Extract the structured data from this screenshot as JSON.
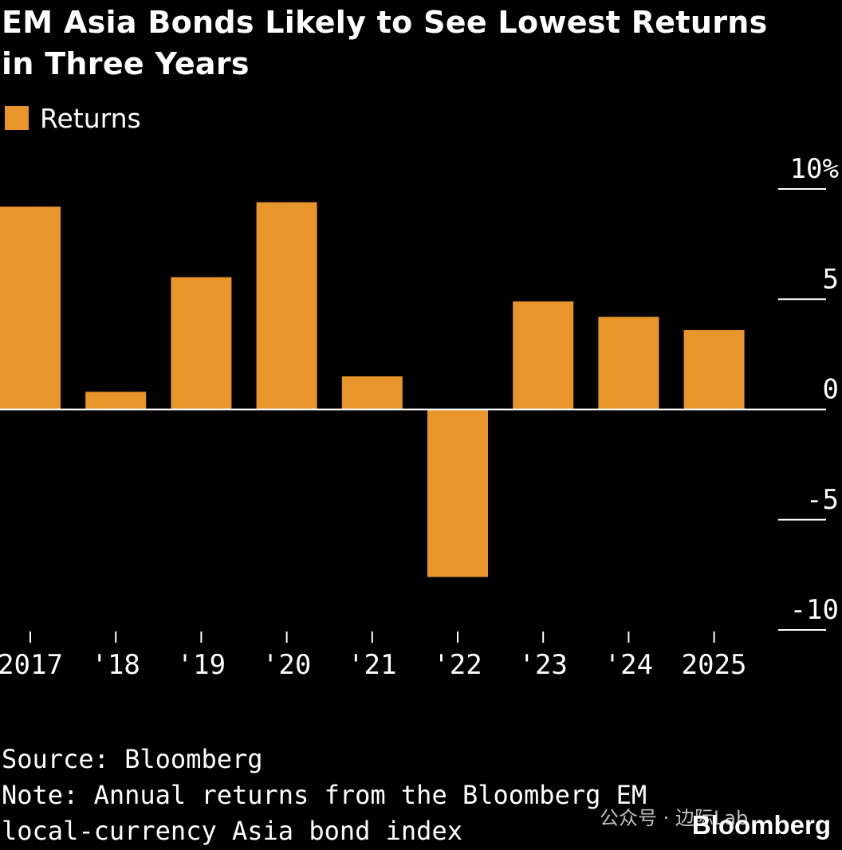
{
  "chart_data": {
    "type": "bar",
    "title": "EM Asia Bonds Likely to See Lowest Returns in Three Years",
    "title_lines": [
      "EM Asia Bonds Likely to See Lowest Returns",
      "in Three Years"
    ],
    "legend": [
      "Returns"
    ],
    "categories": [
      "2017",
      "'18",
      "'19",
      "'20",
      "'21",
      "'22",
      "'23",
      "'24",
      "2025"
    ],
    "series": [
      {
        "name": "Returns",
        "values": [
          9.2,
          0.8,
          6.0,
          9.4,
          1.5,
          -7.6,
          4.9,
          4.2,
          3.6
        ]
      }
    ],
    "ylim": [
      -10,
      10
    ],
    "yticks": [
      10,
      5,
      0,
      -5,
      -10
    ],
    "ytick_labels": [
      "10%",
      "5",
      "0",
      "-5",
      "-10"
    ],
    "y_axis_position": "right",
    "bar_color": "#E8952C",
    "background": "#000000"
  },
  "footer": {
    "source": "Source: Bloomberg",
    "note_line1": "Note: Annual returns from the Bloomberg EM",
    "note_line2": "local-currency Asia bond index"
  },
  "brand": "Bloomberg",
  "watermark": "公众号 · 边际Lab"
}
